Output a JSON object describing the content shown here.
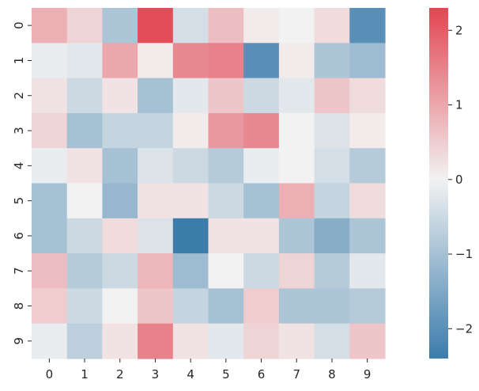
{
  "chart_data": {
    "type": "heatmap",
    "title": "",
    "xlabel": "",
    "ylabel": "",
    "x_categories": [
      "0",
      "1",
      "2",
      "3",
      "4",
      "5",
      "6",
      "7",
      "8",
      "9"
    ],
    "y_categories": [
      "0",
      "1",
      "2",
      "3",
      "4",
      "5",
      "6",
      "7",
      "8",
      "9"
    ],
    "values": [
      [
        0.9,
        0.4,
        -0.9,
        2.2,
        -0.4,
        0.7,
        0.1,
        0.0,
        0.3,
        -2.0
      ],
      [
        -0.1,
        -0.2,
        1.0,
        0.1,
        1.4,
        1.5,
        -2.0,
        0.1,
        -0.9,
        -1.1
      ],
      [
        0.2,
        -0.5,
        0.2,
        -1.0,
        -0.2,
        0.6,
        -0.5,
        -0.2,
        0.6,
        0.3
      ],
      [
        0.4,
        -1.0,
        -0.6,
        -0.6,
        0.1,
        1.2,
        1.4,
        0.0,
        -0.3,
        0.1
      ],
      [
        -0.1,
        0.2,
        -1.0,
        -0.3,
        -0.5,
        -0.8,
        -0.1,
        0.0,
        -0.4,
        -0.8
      ],
      [
        -1.0,
        0.0,
        -1.2,
        0.2,
        0.2,
        -0.5,
        -1.0,
        0.9,
        -0.6,
        0.3
      ],
      [
        -1.0,
        -0.5,
        0.3,
        -0.3,
        -2.4,
        0.2,
        0.2,
        -0.9,
        -1.4,
        -0.9
      ],
      [
        0.7,
        -0.8,
        -0.5,
        0.8,
        -1.1,
        0.0,
        -0.5,
        0.4,
        -0.8,
        -0.2
      ],
      [
        0.5,
        -0.5,
        0.0,
        0.6,
        -0.6,
        -1.0,
        0.5,
        -0.9,
        -0.9,
        -0.8
      ],
      [
        -0.1,
        -0.7,
        0.2,
        1.5,
        0.2,
        -0.2,
        0.4,
        0.2,
        -0.4,
        0.6
      ]
    ],
    "colorbar": {
      "min": -2.4,
      "max": 2.3,
      "ticks": [
        -2,
        -1,
        0,
        1,
        2
      ],
      "tick_labels": [
        "−2",
        "−1",
        "0",
        "1",
        "2"
      ]
    },
    "colors": {
      "negative_end": "#3b7cab",
      "center": "#f2f2f2",
      "positive_end": "#e24652",
      "text": "#262626"
    }
  }
}
